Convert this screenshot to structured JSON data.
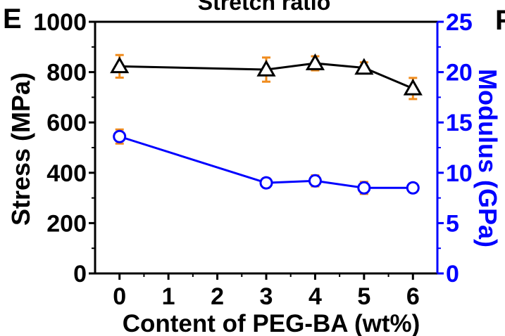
{
  "panel_label": "E",
  "top_text": "Stretch ratio",
  "right_edge_label": "F",
  "chart_data": {
    "type": "line",
    "title": "",
    "xlabel": "Content of PEG-BA (wt%)",
    "ylabel": "Stress (MPa)",
    "y2label": "Modulus (GPa)",
    "xlim": [
      -0.5,
      6.5
    ],
    "ylim": [
      0,
      1000
    ],
    "y2lim": [
      0,
      25
    ],
    "x_ticks": [
      0,
      1,
      2,
      3,
      4,
      5,
      6
    ],
    "y_ticks": [
      0,
      200,
      400,
      600,
      800,
      1000
    ],
    "y2_ticks": [
      0,
      5,
      10,
      15,
      20,
      25
    ],
    "grid": false,
    "series": [
      {
        "axis": "left",
        "color": "#000000",
        "marker": "triangle",
        "error_color": "#f08c1e",
        "x": [
          0,
          3,
          4,
          5,
          6
        ],
        "values": [
          823,
          810,
          835,
          817,
          735
        ],
        "errors": [
          45,
          48,
          28,
          22,
          42
        ]
      },
      {
        "axis": "right",
        "color": "#0000ff",
        "marker": "circle",
        "error_color": "#f08c1e",
        "x": [
          0,
          3,
          4,
          5,
          6
        ],
        "values": [
          13.6,
          9.0,
          9.2,
          8.5,
          8.5
        ],
        "errors": [
          0.7,
          0.45,
          0.55,
          0.6,
          0.45
        ]
      }
    ]
  }
}
